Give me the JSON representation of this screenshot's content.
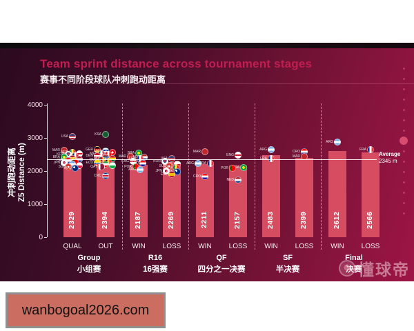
{
  "header": {
    "title": "Team sprint distance across tournament stages",
    "subtitle": "赛事不同阶段球队冲刺跑动距离"
  },
  "chart_data": {
    "type": "bar",
    "title": "Team sprint distance across tournament stages",
    "subtitle": "赛事不同阶段球队冲刺跑动距离",
    "ylabel": "Z5 Distance (m)",
    "ylabel_cn": "冲刺跑动距离",
    "ylim": [
      0,
      4000
    ],
    "yticks": [
      4000,
      3000,
      2000,
      1000,
      0
    ],
    "grid": false,
    "bar_color": "#d64d62",
    "average": 2345,
    "average_label": "Average",
    "average_value_label": "2345 m",
    "stages": [
      {
        "stage": "Group",
        "stage_cn": "小组赛",
        "bars": [
          {
            "label": "QUAL",
            "value": 2329,
            "markers": [
              {
                "c": "USA",
                "v": 3050,
                "dx": 0
              },
              {
                "c": "MAR",
                "v": 2620,
                "dx": -12
              },
              {
                "c": "SEN",
                "v": 2560,
                "dx": 0
              },
              {
                "c": "ENG",
                "v": 2530,
                "dx": 10
              },
              {
                "c": "KOR",
                "v": 2500,
                "dx": -6
              },
              {
                "c": "FRA",
                "v": 2460,
                "dx": 4
              },
              {
                "c": "BRA",
                "v": 2420,
                "dx": -12
              },
              {
                "c": "ESP",
                "v": 2380,
                "dx": 0
              },
              {
                "c": "NED",
                "v": 2350,
                "dx": 10
              },
              {
                "c": "CRO",
                "v": 2310,
                "dx": -6
              },
              {
                "c": "POR",
                "v": 2280,
                "dx": 4
              },
              {
                "c": "JPN",
                "v": 2250,
                "dx": -12
              },
              {
                "c": "ARG",
                "v": 2210,
                "dx": 0
              },
              {
                "c": "POL",
                "v": 2170,
                "dx": 10
              },
              {
                "c": "SUI",
                "v": 2130,
                "dx": -6
              },
              {
                "c": "AUS",
                "v": 2090,
                "dx": 4
              }
            ]
          },
          {
            "label": "OUT",
            "value": 2394,
            "markers": [
              {
                "c": "KSA",
                "v": 3100,
                "dx": 0
              },
              {
                "c": "GER",
                "v": 2650,
                "dx": -12
              },
              {
                "c": "URU",
                "v": 2610,
                "dx": 0
              },
              {
                "c": "TUN",
                "v": 2570,
                "dx": 10
              },
              {
                "c": "MEX",
                "v": 2530,
                "dx": -6
              },
              {
                "c": "CAN",
                "v": 2490,
                "dx": 4
              },
              {
                "c": "DEN",
                "v": 2450,
                "dx": -12
              },
              {
                "c": "SRB",
                "v": 2410,
                "dx": 0
              },
              {
                "c": "GHA",
                "v": 2370,
                "dx": 10
              },
              {
                "c": "CMR",
                "v": 2330,
                "dx": -6
              },
              {
                "c": "BEL",
                "v": 2290,
                "dx": 4
              },
              {
                "c": "ECU",
                "v": 2250,
                "dx": -12
              },
              {
                "c": "IRN",
                "v": 2210,
                "dx": 0
              },
              {
                "c": "WAL",
                "v": 2170,
                "dx": 10
              },
              {
                "c": "QAT",
                "v": 2130,
                "dx": -6
              },
              {
                "c": "CRC",
                "v": 1850,
                "dx": 0
              }
            ]
          }
        ]
      },
      {
        "stage": "R16",
        "stage_cn": "16强赛",
        "bars": [
          {
            "label": "WIN",
            "value": 2187,
            "markers": [
              {
                "c": "BRA",
                "v": 2540,
                "dx": 0
              },
              {
                "c": "MAR",
                "v": 2440,
                "dx": -12
              },
              {
                "c": "NED",
                "v": 2420,
                "dx": 8
              },
              {
                "c": "FRA",
                "v": 2380,
                "dx": 2
              },
              {
                "c": "ENG",
                "v": 2300,
                "dx": -8
              },
              {
                "c": "CRO",
                "v": 2230,
                "dx": 6
              },
              {
                "c": "POR",
                "v": 2120,
                "dx": -4
              },
              {
                "c": "ARG",
                "v": 2040,
                "dx": 2
              }
            ]
          },
          {
            "label": "LOSS",
            "value": 2269,
            "markers": [
              {
                "c": "USA",
                "v": 2380,
                "dx": 0
              },
              {
                "c": "KOR",
                "v": 2290,
                "dx": -10
              },
              {
                "c": "POL",
                "v": 2210,
                "dx": 8
              },
              {
                "c": "SUI",
                "v": 2150,
                "dx": -4
              },
              {
                "c": "SEN",
                "v": 2100,
                "dx": 6
              },
              {
                "c": "JPN",
                "v": 2000,
                "dx": -8
              },
              {
                "c": "AUS",
                "v": 1980,
                "dx": 8
              },
              {
                "c": "ESP",
                "v": 1900,
                "dx": 0
              }
            ]
          }
        ]
      },
      {
        "stage": "QF",
        "stage_cn": "四分之一决赛",
        "bars": [
          {
            "label": "WIN",
            "value": 2211,
            "markers": [
              {
                "c": "MAR",
                "v": 2580,
                "dx": 0
              },
              {
                "c": "ARG",
                "v": 2230,
                "dx": -10
              },
              {
                "c": "FRA",
                "v": 2230,
                "dx": 8
              },
              {
                "c": "CRO",
                "v": 1830,
                "dx": 0
              }
            ]
          },
          {
            "label": "LOSS",
            "value": 2157,
            "markers": [
              {
                "c": "ENG",
                "v": 2480,
                "dx": 0
              },
              {
                "c": "BRA",
                "v": 2110,
                "dx": 8
              },
              {
                "c": "POR",
                "v": 2080,
                "dx": -8
              },
              {
                "c": "NED",
                "v": 1720,
                "dx": 0
              }
            ]
          }
        ]
      },
      {
        "stage": "SF",
        "stage_cn": "半决赛",
        "bars": [
          {
            "label": "WIN",
            "value": 2483,
            "markers": [
              {
                "c": "ARG",
                "v": 2650,
                "dx": 0
              },
              {
                "c": "FRA",
                "v": 2380,
                "dx": 0
              }
            ]
          },
          {
            "label": "LOSS",
            "value": 2399,
            "markers": [
              {
                "c": "CRO",
                "v": 2590,
                "dx": 0
              },
              {
                "c": "MAR",
                "v": 2430,
                "dx": 0
              }
            ]
          }
        ]
      },
      {
        "stage": "Final",
        "stage_cn": "决赛",
        "bars": [
          {
            "label": "WIN",
            "value": 2612,
            "markers": [
              {
                "c": "ARG",
                "v": 2880,
                "dx": 0
              }
            ]
          },
          {
            "label": "LOSS",
            "value": 2566,
            "markers": [
              {
                "c": "FRA",
                "v": 2640,
                "dx": 0
              }
            ]
          }
        ]
      }
    ]
  },
  "watermarks": {
    "site": "wanbogoal2026.com",
    "logo_text": "懂球帝"
  }
}
